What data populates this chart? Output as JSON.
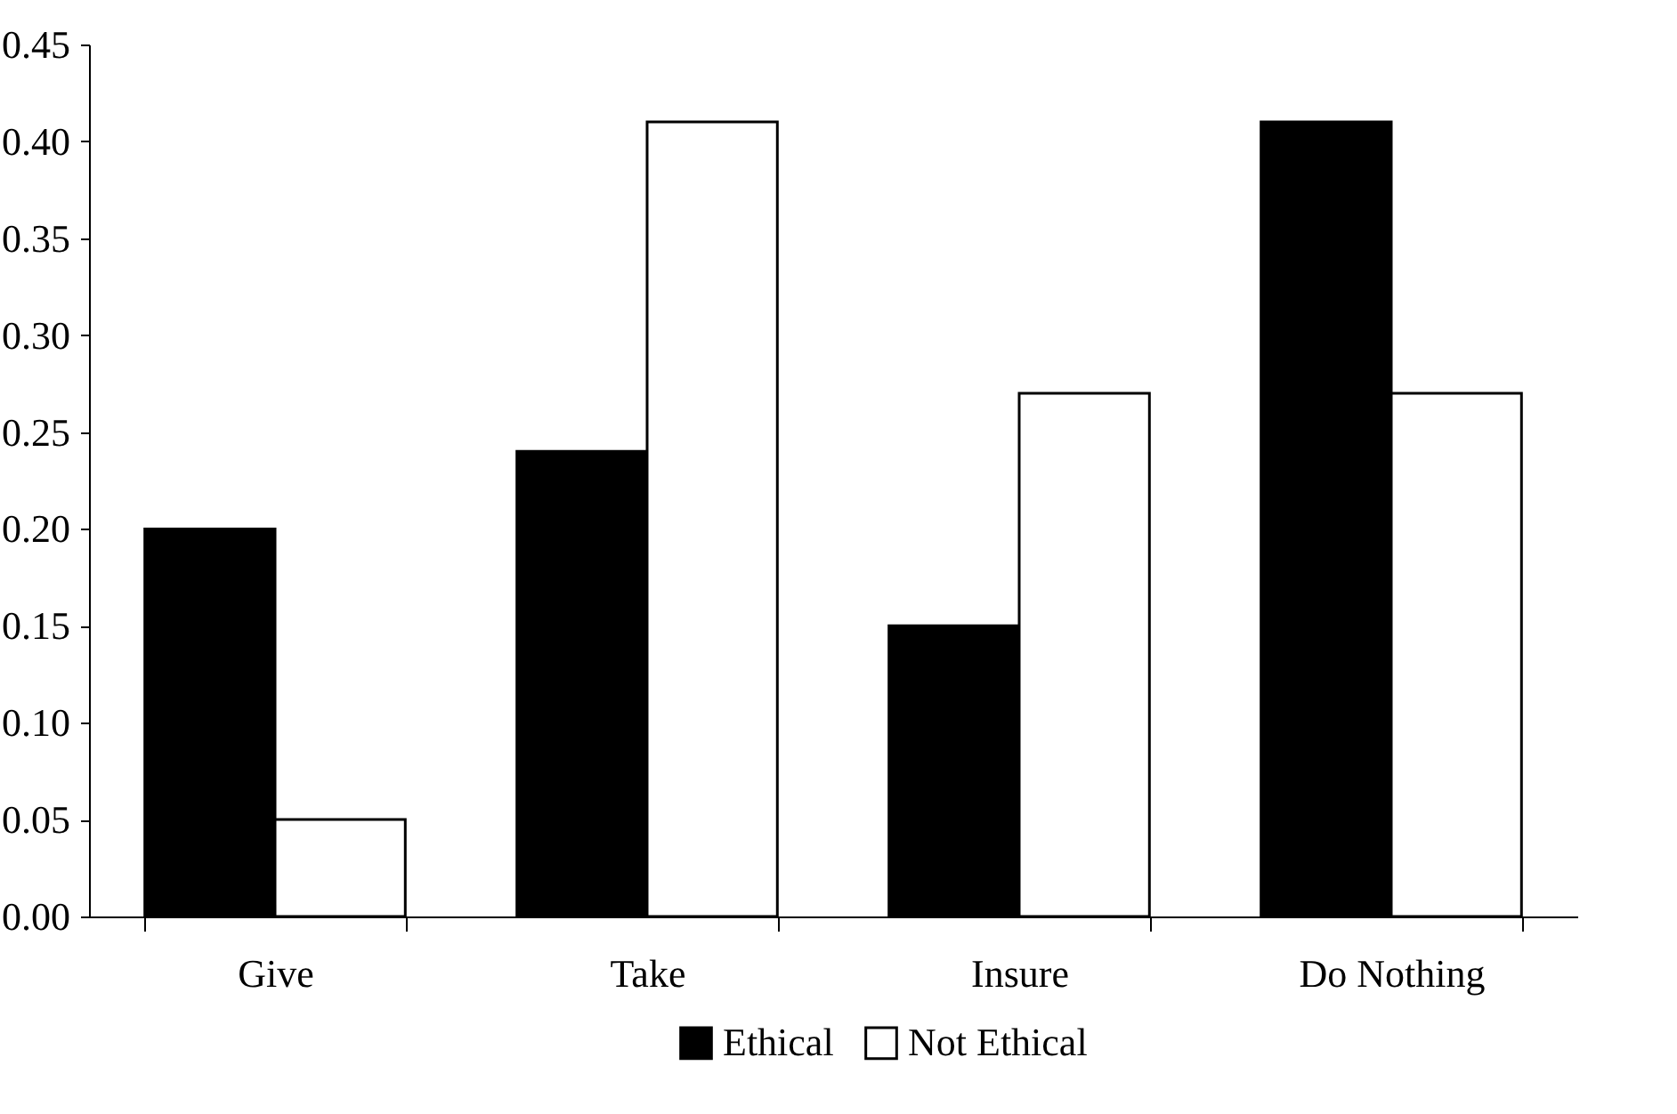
{
  "chart_data": {
    "type": "bar",
    "categories": [
      "Give",
      "Take",
      "Insure",
      "Do Nothing"
    ],
    "series": [
      {
        "name": "Ethical",
        "color": "#000000",
        "values": [
          0.2,
          0.24,
          0.15,
          0.41
        ]
      },
      {
        "name": "Not Ethical",
        "color": "#ffffff",
        "values": [
          0.05,
          0.41,
          0.27,
          0.27
        ]
      }
    ],
    "ylim": [
      0,
      0.45
    ],
    "yticks": [
      {
        "value": 0,
        "label": "0.00"
      },
      0.05,
      {
        "value": 0.1,
        "label": "0.10"
      },
      0.15,
      {
        "value": 0.2,
        "label": "0.20"
      },
      0.25,
      {
        "value": 0.3,
        "label": "0.30"
      },
      0.35,
      {
        "value": 0.4,
        "label": "0.40"
      },
      0.45
    ],
    "grid": false,
    "legend": "bottom"
  }
}
